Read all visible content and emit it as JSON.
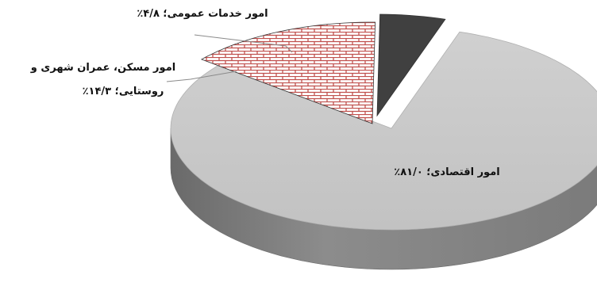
{
  "chart_data": {
    "type": "pie",
    "style": "3d exploded",
    "slices": [
      {
        "label": "امور اقتصادی؛ ۸۱/۰٪",
        "value": 81.0,
        "color": "#c4c4c4",
        "pattern": "solid"
      },
      {
        "label_lines": [
          "امور مسکن، عمران شهری و",
          "روستایی؛ ۱۴/۳٪"
        ],
        "value": 14.3,
        "color": "#c0504d",
        "pattern": "brick"
      },
      {
        "label": "امور خدمات عمومی؛ ۴/۸٪",
        "value": 4.8,
        "color": "#404040",
        "pattern": "solid"
      }
    ]
  }
}
